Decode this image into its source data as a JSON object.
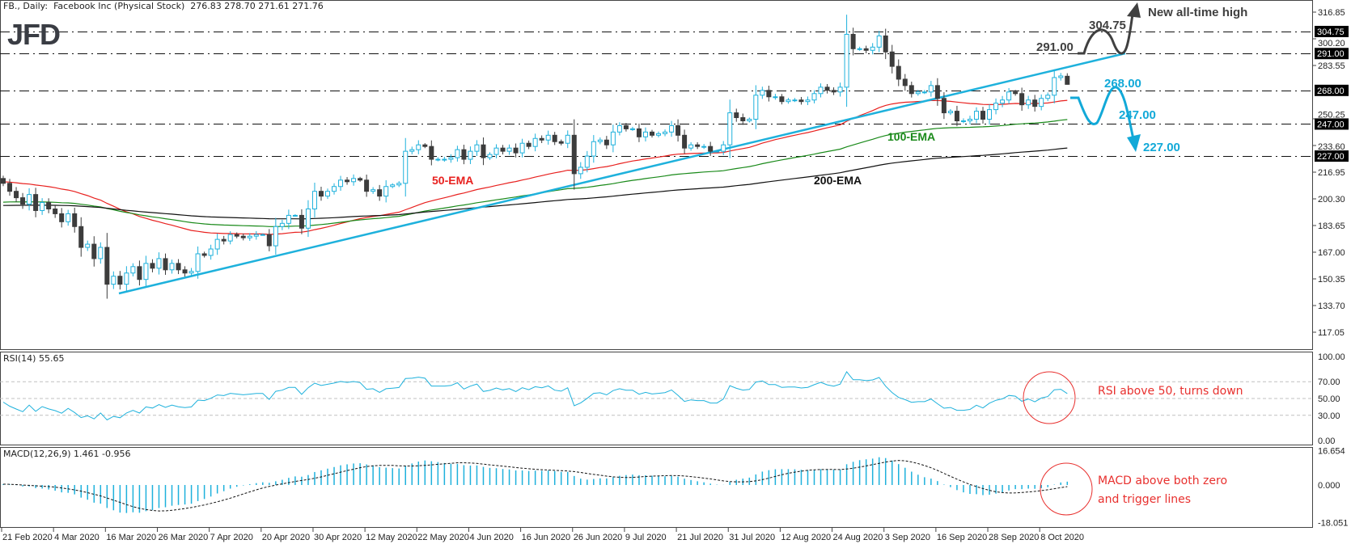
{
  "header": {
    "title": "FB., Daily:  Facebook Inc (Physical Stock)  276.83 278.70 271.61 271.76"
  },
  "logo": "JFD",
  "rsi_label": "RSI(14) 55.65",
  "macd_label": "MACD(12,26,9) 1.461 -0.956",
  "colors": {
    "bull": "#1eb1dc",
    "bear": "#3c3c3c",
    "ema50": "#e8201e",
    "ema100": "#1a8a1a",
    "ema200": "#111111",
    "trendline": "#1eb1dc",
    "annotation_blue": "#12a9d8",
    "annotation_dark": "#404040",
    "note_red": "#e8302e"
  },
  "annotations": {
    "new_high": "New all-time high",
    "level_304": "304.75",
    "level_291": "291.00",
    "level_268": "268.00",
    "level_247": "247.00",
    "level_227": "227.00",
    "ema50": "50-EMA",
    "ema100": "100-EMA",
    "ema200": "200-EMA",
    "rsi_note": "RSI above 50, turns down",
    "macd_note_1": "MACD above both zero",
    "macd_note_2": "and trigger lines"
  },
  "chart_data": {
    "type": "candlestick",
    "title": "FB., Daily: Facebook Inc (Physical Stock)",
    "last_bar": {
      "open": 276.83,
      "high": 278.7,
      "low": 271.61,
      "close": 271.76
    },
    "x_tick_labels": [
      "21 Feb 2020",
      "4 Mar 2020",
      "16 Mar 2020",
      "26 Mar 2020",
      "7 Apr 2020",
      "20 Apr 2020",
      "30 Apr 2020",
      "12 May 2020",
      "22 May 2020",
      "4 Jun 2020",
      "16 Jun 2020",
      "26 Jun 2020",
      "9 Jul 2020",
      "21 Jul 2020",
      "31 Jul 2020",
      "12 Aug 2020",
      "24 Aug 2020",
      "3 Sep 2020",
      "16 Sep 2020",
      "28 Sep 2020",
      "8 Oct 2020"
    ],
    "closes": [
      210,
      205,
      201,
      197,
      203,
      193,
      198,
      194,
      191,
      186,
      191,
      183,
      170,
      172,
      163,
      170,
      147,
      152,
      147,
      154,
      158,
      150,
      160,
      157,
      163,
      156,
      160,
      156,
      154,
      155,
      166,
      165,
      169,
      175,
      174,
      178,
      177,
      176,
      177,
      178,
      178,
      171,
      183,
      185,
      190,
      190,
      182,
      194,
      205,
      202,
      205,
      208,
      212,
      211,
      213,
      212,
      205,
      206,
      202,
      208,
      209,
      210,
      230,
      231,
      234,
      233,
      225,
      225,
      225,
      226,
      231,
      225,
      230,
      234,
      226,
      228,
      232,
      230,
      232,
      229,
      235,
      233,
      238,
      237,
      240,
      236,
      235,
      240,
      216,
      220,
      227,
      236,
      237,
      234,
      242,
      246,
      244,
      244,
      239,
      242,
      240,
      241,
      242,
      246,
      240,
      232,
      234,
      233,
      233,
      230,
      230,
      234,
      254,
      251,
      249,
      250,
      265,
      268,
      264,
      264,
      261,
      262,
      262,
      261,
      262,
      266,
      270,
      268,
      267,
      270,
      303,
      294,
      294,
      293,
      295,
      302,
      292,
      283,
      275,
      271,
      266,
      267,
      267,
      271,
      263,
      254,
      255,
      249,
      249,
      250,
      255,
      250,
      256,
      260,
      262,
      267,
      266,
      259,
      262,
      258,
      263,
      265,
      276,
      277,
      271.76
    ],
    "price_axis_ticks": [
      316.85,
      300.2,
      283.55,
      250.25,
      233.6,
      216.95,
      200.3,
      183.65,
      167.0,
      150.35,
      133.7,
      117.05
    ],
    "price_range": [
      117.05,
      316.85
    ],
    "horizontal_levels": [
      304.75,
      291.0,
      268.0,
      247.0,
      227.0
    ],
    "level_tags": [
      "304.75",
      "291.00",
      "268.00",
      "247.00",
      "227.00"
    ],
    "emas": [
      50,
      100,
      200
    ],
    "rsi": {
      "period": 14,
      "value": 55.65,
      "levels": [
        70,
        50,
        30
      ],
      "range": [
        0,
        100
      ],
      "ticks": [
        "100.00",
        "70.00",
        "50.00",
        "30.00",
        "0.00"
      ]
    },
    "macd": {
      "fast": 12,
      "slow": 26,
      "signal": 9,
      "main": 1.461,
      "signal_value": -0.956,
      "range": [
        -18.051,
        16.654
      ],
      "ticks": [
        "16.654",
        "0.000",
        "-18.051"
      ]
    }
  }
}
